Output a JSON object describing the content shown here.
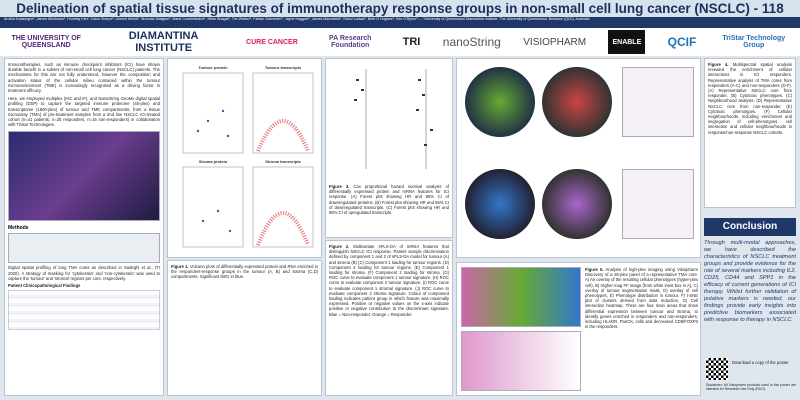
{
  "header": {
    "title": "Delineation of spatial tissue signatures of immunotherapy response groups in non-small cell lung cancer (NSCLC) - 118",
    "authors": "Arutha Kulasinghe¹, James Monkman¹, Honesty Kim², Caius Sharpe², Ahmed Mehdi¹, Nicholas Matigian³, Marie Cumberbatch⁴, Milan Bhagat⁵, Tim Walker⁶, Fabian Schneider⁶, Jayne Haggart⁶, James Mannsfeld⁷, Rahul Ladwa⁸, Brett G Hughes⁸, Ken O'Byrne⁸ — ¹University of Queensland Diamantina Institute, The University of Queensland, Brisbane (QLD), Australia"
  },
  "logos": [
    "THE UNIVERSITY OF QUEENSLAND",
    "DIAMANTINA INSTITUTE",
    "CURE CANCER",
    "PA Research Foundation",
    "TRI",
    "nanoString",
    "VISIOPHARM",
    "ENABLE",
    "QCIF",
    "TriStar Technology Group"
  ],
  "intro": [
    "Immunotherapies, such as immune checkpoint inhibitors (ICI) have shown durable benefit in a subset of non-small cell lung cancer (NSCLC) patients. The mechanisms for this are not fully understood, however the composition and activation status of the cellular milieu contained within the tumour microenvironment (TME) is increasingly recognised as a driving factor in treatment efficacy.",
    "Here, we employed multiplex (IHC and IF), and NanoString GeoMx digital spatial profiling (DSP) to capture the targeted immune proteome (40-plex) and transcriptome (1800-plex) of tumour and TME compartments, from a tissue microarray (TMA) of pre-treatment samples from a 2nd line NSCLC ICI-treated cohort (n=41 patients; n=25 responders, n=16 non-responders) in collaboration with Tristar Technologies."
  ],
  "methods": {
    "heading": "Methods",
    "text": "Digital spatial profiling of lung TMA cores as described in Sadeghi et al., (TI 2020). A strategy of masking for 'cytokeratin' and 'non-cytokeratin' was used to capture the 'tumour' and 'stromal' regions per core, respectively.",
    "table_title": "Patient Clinicopathological Findings"
  },
  "figures": [
    {
      "label": "Figure 1.",
      "caption": "Volcano plots of differentially expressed protein and RNA enriched in the responders-response groups in the tumour (A, B) and stroma (C,D) compartments. Significant DEG in blue.",
      "panels": [
        "Tumour protein",
        "Tumour transcripts",
        "Stroma protein",
        "Stroma transcripts"
      ]
    },
    {
      "label": "Figure 2.",
      "caption": "Multivariate sPLS-DA of mRNA features that distinguish NSCLC ICI response. Patient sample discrimination defined by component 1 and 2 of sPLS-DA model for tumour (A) and stroma (B) (C) Component 1 loading for tumour regions. (D) Component 2 loading for tumour regions. (E) Component 1 loading for stroma. (F) Component 2 loading for stroma. (G) ROC curve to evaluate component 1 tumour signature. (H) ROC curve to evaluate component 2 tumour signature. (I) ROC curve to evaluate component 1 stromal signature. (J) ROC curve to evaluate component 2 stroma signature. Colour of component loading indicates patient group in which feature was maximally expressed. Positive or negative values on the x-axis indicate positive or negative contribution to the discriminant signature. Blue = Non-responder, Orange = Responder."
    },
    {
      "label": "Figure 3.",
      "caption": "Cox proportional hazard survival analysis of differentially expressed protein and mRNA features for ICI response. (A) Forest plot showing HR and 95% CI of downregulated proteins. (B) Forest plot showing HR and 95% CI of downregulated transcripts. (C) Forest plot showing HR and 95% CI of upregulated transcripts."
    },
    {
      "label": "Figure 4.",
      "caption": "Multispectral spatial analysis revealed the enrichment of cellular interactions in ICI responders. Representative analysis of TMA cores from responders (A-C) and non-responders (D-F). (A) Representative NSCLC core from responder. (B) Cytotoxic phenotypes. (C) Neighbourhood analysis. (D) Representative NSCLC core from non-responder. (E) Cytotoxic phenotypes. (F) Cellular neighbourhoods, including enrichment and segregation of cell-phenotypes, cell interaction and cellular neighbourhoods in response/non-response NSCLC cohorts."
    },
    {
      "label": "Figure 5.",
      "caption": "Analysis of high-plex imaging using Visiopharm Discovery of a 25-plex panel of a representative TMA core. A) An overlay of the resulting cellular phenotypes (hyper-plex cell), B) Higher mag FF image (from white inset box in A), C) overlay of tumour segmentation mask, D) overlay of cell phenotypes, E) Phenotype distribution in tumour, F) t-SNE plot of clusters derived from data reduction, G) Cell interaction heatmap. There are four main areas that show differential expression between tumour and stroma, to identify genes enriched in responders and non-responders, including HLADR, PanCK, cells and decreased CD8/FOXP3 in the responders."
    }
  ],
  "conclusion": {
    "heading": "Conclusion",
    "text": "Through multi-modal approaches, we have described the characteristics of NSCLC treatment groups and provide evidence for the role of several markers including IL2, CD25, CD44 and SPP1 in the efficacy of current generations of ICI therapy. Whilst further validation of putative markers is needed, our findings provide early insights into predictive biomarkers associated with response to therapy in NSCLC."
  },
  "footer": {
    "download": "Download a copy of the poster",
    "disclaimer": "Disclaimer: All Visiopharm products used in this poster are intended for Research Use Only (RUO)."
  }
}
